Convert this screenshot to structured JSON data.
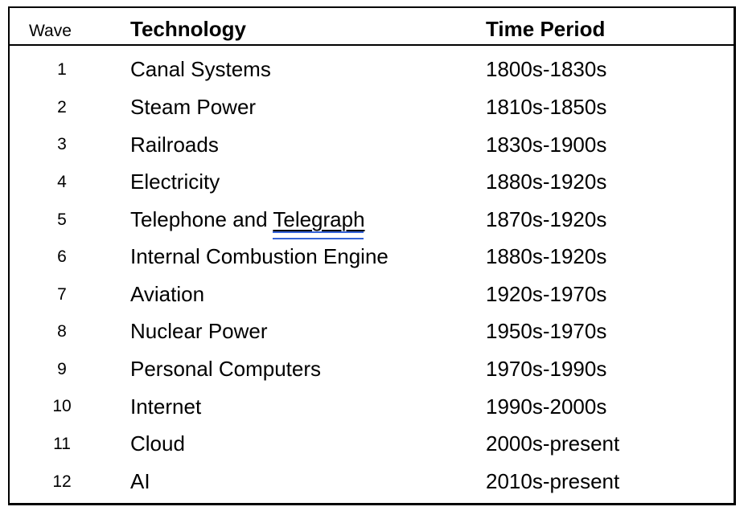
{
  "colors": {
    "background": "#FFFFFF",
    "text": "#000000",
    "table_border": "#000000",
    "grammar_underline_blue": "#3563D8"
  },
  "table": {
    "headers": {
      "wave": "Wave",
      "technology": "Technology",
      "time_period": "Time Period"
    },
    "rows": [
      {
        "wave": "1",
        "technology": "Canal Systems",
        "time_period": "1800s-1830s"
      },
      {
        "wave": "2",
        "technology": "Steam Power",
        "time_period": "1810s-1850s"
      },
      {
        "wave": "3",
        "technology": "Railroads",
        "time_period": "1830s-1900s"
      },
      {
        "wave": "4",
        "technology": "Electricity",
        "time_period": "1880s-1920s"
      },
      {
        "wave": "5",
        "technology": "Telephone and Telegraph",
        "time_period": "1870s-1920s",
        "technology_parts": [
          {
            "text": "Telephone and ",
            "underlined": false
          },
          {
            "text": "Telegraph",
            "underlined": true
          }
        ]
      },
      {
        "wave": "6",
        "technology": "Internal Combustion Engine",
        "time_period": "1880s-1920s"
      },
      {
        "wave": "7",
        "technology": "Aviation",
        "time_period": "1920s-1970s"
      },
      {
        "wave": "8",
        "technology": "Nuclear Power",
        "time_period": "1950s-1970s"
      },
      {
        "wave": "9",
        "technology": "Personal Computers",
        "time_period": "1970s-1990s"
      },
      {
        "wave": "10",
        "technology": "Internet",
        "time_period": "1990s-2000s"
      },
      {
        "wave": "11",
        "technology": "Cloud",
        "time_period": "2000s-present"
      },
      {
        "wave": "12",
        "technology": "AI",
        "time_period": "2010s-present"
      }
    ]
  }
}
